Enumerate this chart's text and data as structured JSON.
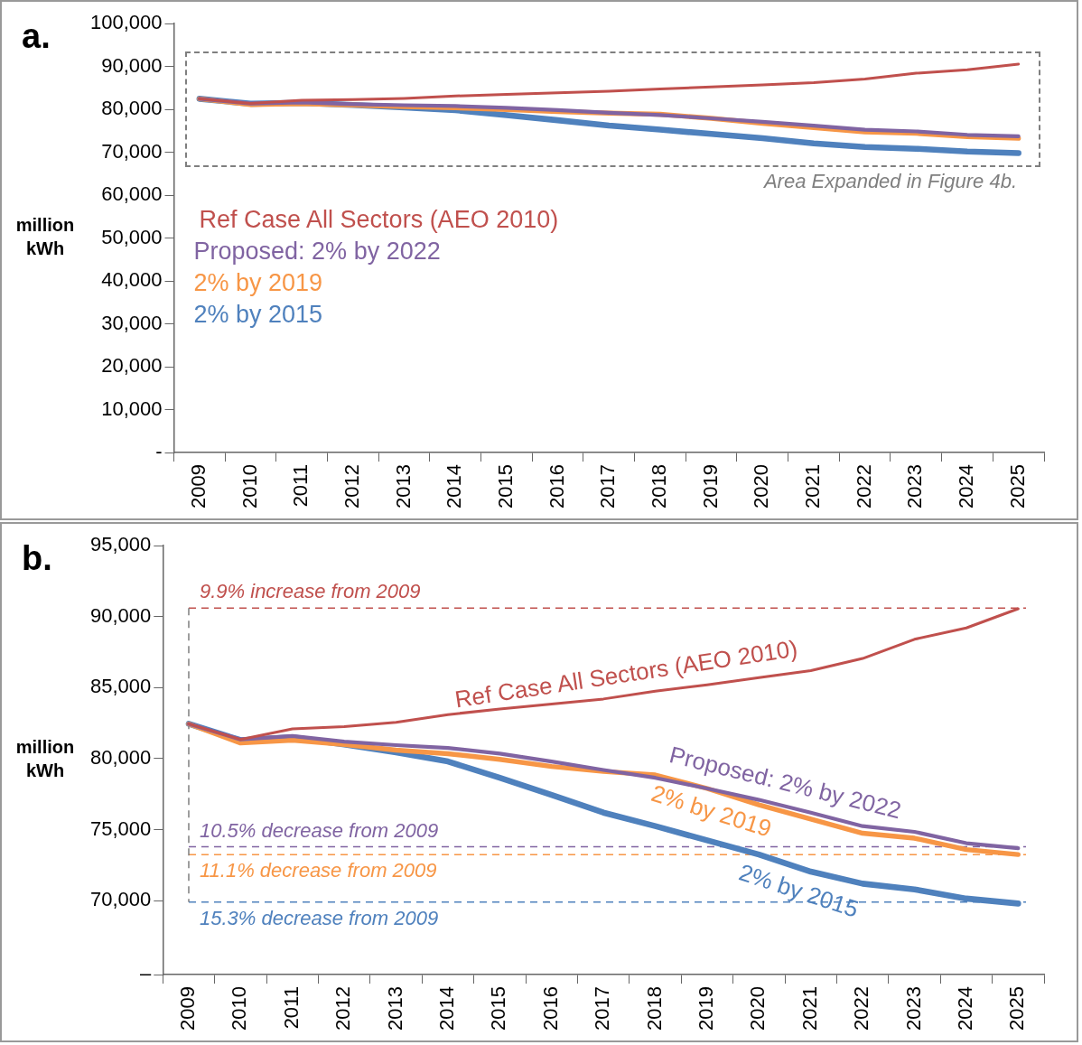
{
  "chart_data": [
    {
      "type": "line",
      "title": "a.",
      "ylabel": "million\nkWh",
      "categories": [
        "2009",
        "2010",
        "2011",
        "2012",
        "2013",
        "2014",
        "2015",
        "2016",
        "2017",
        "2018",
        "2019",
        "2020",
        "2021",
        "2022",
        "2023",
        "2024",
        "2025"
      ],
      "series": [
        {
          "name": "Ref Case All Sectors (AEO 2010)",
          "color": "#c0504d",
          "values": [
            82450,
            81350,
            82100,
            82250,
            82550,
            83100,
            83500,
            83850,
            84200,
            84750,
            85200,
            85700,
            86200,
            87050,
            88400,
            89200,
            90550
          ]
        },
        {
          "name": "Proposed: 2% by 2022",
          "color": "#8064a2",
          "values": [
            82450,
            81350,
            81600,
            81200,
            80950,
            80750,
            80350,
            79800,
            79200,
            78650,
            77900,
            77100,
            76200,
            75250,
            74850,
            74050,
            73700
          ]
        },
        {
          "name": "2% by 2019",
          "color": "#f79646",
          "values": [
            82450,
            81100,
            81300,
            81000,
            80600,
            80350,
            79950,
            79450,
            79100,
            78850,
            77900,
            76750,
            75750,
            74750,
            74400,
            73600,
            73250
          ]
        },
        {
          "name": "2% by 2015",
          "color": "#4f81bd",
          "values": [
            82450,
            81300,
            81500,
            81000,
            80450,
            79800,
            78650,
            77450,
            76200,
            75250,
            74250,
            73250,
            72050,
            71200,
            70800,
            70150,
            69800
          ]
        }
      ],
      "ylim": [
        0,
        100000
      ],
      "yticks": [
        {
          "value": 0,
          "label": "-"
        },
        {
          "value": 10000,
          "label": "10,000"
        },
        {
          "value": 20000,
          "label": "20,000"
        },
        {
          "value": 30000,
          "label": "30,000"
        },
        {
          "value": 40000,
          "label": "40,000"
        },
        {
          "value": 50000,
          "label": "50,000"
        },
        {
          "value": 60000,
          "label": "60,000"
        },
        {
          "value": 70000,
          "label": "70,000"
        },
        {
          "value": 80000,
          "label": "80,000"
        },
        {
          "value": 90000,
          "label": "90,000"
        },
        {
          "value": 100000,
          "label": "100,000"
        }
      ],
      "annotations": [
        "Area Expanded in Figure 4b."
      ],
      "grid": false,
      "legend": "left",
      "marker": "none",
      "line_style": "solid"
    },
    {
      "type": "line",
      "title": "b.",
      "ylabel": "million\nkWh",
      "categories": [
        "2009",
        "2010",
        "2011",
        "2012",
        "2013",
        "2014",
        "2015",
        "2016",
        "2017",
        "2018",
        "2019",
        "2020",
        "2021",
        "2022",
        "2023",
        "2024",
        "2025"
      ],
      "series": [
        {
          "name": "Ref Case All Sectors (AEO 2010)",
          "color": "#c0504d",
          "values": [
            82450,
            81350,
            82100,
            82250,
            82550,
            83100,
            83500,
            83850,
            84200,
            84750,
            85200,
            85700,
            86200,
            87050,
            88400,
            89200,
            90550
          ]
        },
        {
          "name": "Proposed: 2% by 2022",
          "color": "#8064a2",
          "values": [
            82450,
            81350,
            81600,
            81200,
            80950,
            80750,
            80350,
            79800,
            79200,
            78650,
            77900,
            77100,
            76200,
            75250,
            74850,
            74050,
            73700
          ]
        },
        {
          "name": "2% by 2019",
          "color": "#f79646",
          "values": [
            82450,
            81100,
            81300,
            81000,
            80600,
            80350,
            79950,
            79450,
            79100,
            78850,
            77900,
            76750,
            75750,
            74750,
            74400,
            73600,
            73250
          ]
        },
        {
          "name": "2% by 2015",
          "color": "#4f81bd",
          "values": [
            82450,
            81300,
            81500,
            81000,
            80450,
            79800,
            78650,
            77450,
            76200,
            75250,
            74250,
            73250,
            72050,
            71200,
            70800,
            70150,
            69800
          ]
        }
      ],
      "ylim": [
        64800,
        95000
      ],
      "yticks": [
        {
          "value": 64800,
          "label": "–"
        },
        {
          "value": 70000,
          "label": "70,000"
        },
        {
          "value": 75000,
          "label": "75,000"
        },
        {
          "value": 80000,
          "label": "80,000"
        },
        {
          "value": 85000,
          "label": "85,000"
        },
        {
          "value": 90000,
          "label": "90,000"
        },
        {
          "value": 95000,
          "label": "95,000"
        }
      ],
      "ref_lines": [
        {
          "axis": "y",
          "value": 90600,
          "label": "9.9% increase from 2009",
          "color": "#c0504d",
          "line_style": "dashed"
        },
        {
          "axis": "y",
          "value": 73800,
          "label": "10.5% decrease from 2009",
          "color": "#8064a2",
          "line_style": "dashed"
        },
        {
          "axis": "y",
          "value": 73250,
          "label": "11.1% decrease from 2009",
          "color": "#f79646",
          "line_style": "dashed"
        },
        {
          "axis": "y",
          "value": 69900,
          "label": "15.3% decrease from 2009",
          "color": "#4f81bd",
          "line_style": "dashed"
        },
        {
          "axis": "x",
          "value": "2009",
          "color": "#7f7f7f",
          "line_style": "dashed"
        }
      ],
      "grid": false,
      "legend": false,
      "marker": "none",
      "line_style": "solid"
    }
  ]
}
